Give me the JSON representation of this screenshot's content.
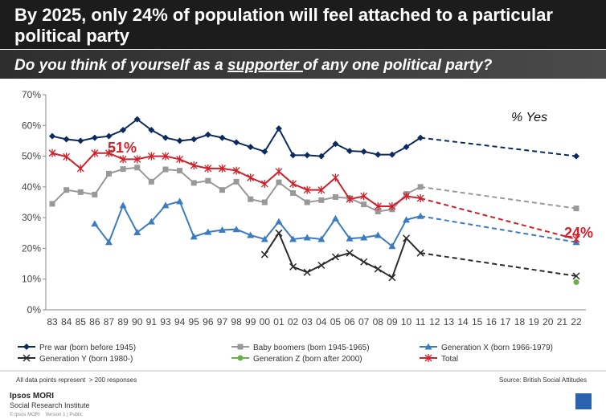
{
  "chart_data": {
    "type": "line",
    "title": [
      "By 2025, only 24% of population will feel attached to a particular",
      "political party"
    ],
    "subtitle": [
      "Do you think of yourself as a ",
      "supporter ",
      "of any one political party?"
    ],
    "categories": [
      "83",
      "84",
      "85",
      "86",
      "87",
      "89",
      "90",
      "91",
      "93",
      "94",
      "95",
      "96",
      "97",
      "98",
      "99",
      "00",
      "01",
      "02",
      "03",
      "04",
      "05",
      "06",
      "07",
      "08",
      "09",
      "10",
      "11",
      "12",
      "13",
      "14",
      "15",
      "16",
      "17",
      "18",
      "19",
      "20",
      "21",
      "22"
    ],
    "ylim": [
      0,
      70
    ],
    "yticks": [
      {
        "value": 0,
        "label": "0%"
      },
      {
        "value": 10,
        "label": "10%"
      },
      {
        "value": 20,
        "label": "20%"
      },
      {
        "value": 30,
        "label": "30%"
      },
      {
        "value": 40,
        "label": "40%"
      },
      {
        "value": 50,
        "label": "50%"
      },
      {
        "value": 60,
        "label": "60%"
      },
      {
        "value": 70,
        "label": "70%"
      }
    ],
    "series": [
      {
        "name": "Pre war (born before 1945)",
        "color": "#0d2a5e",
        "marker": "diamond",
        "values": [
          56.5,
          55.5,
          55,
          56,
          56.5,
          58.5,
          62,
          58.5,
          56,
          55,
          55.5,
          57,
          56,
          54.5,
          53,
          51.5,
          59,
          50.3,
          50.3,
          50,
          54,
          51.7,
          51.5,
          50.5,
          50.5,
          53,
          56,
          null,
          null,
          null,
          null,
          null,
          null,
          null,
          null,
          null,
          null,
          50
        ]
      },
      {
        "name": "Baby boomers (born 1945-1965)",
        "color": "#999999",
        "marker": "square",
        "values": [
          34.5,
          39,
          38.3,
          37.5,
          44.3,
          45.8,
          46.3,
          41.7,
          45.7,
          45.3,
          41.3,
          42,
          39,
          41.7,
          36,
          35,
          41.5,
          38,
          35,
          35.7,
          36.7,
          36.3,
          34.3,
          32,
          32.7,
          37.7,
          40,
          null,
          null,
          null,
          null,
          null,
          null,
          null,
          null,
          null,
          null,
          33
        ]
      },
      {
        "name": "Generation X (born 1966-1979)",
        "color": "#3b7bbf",
        "marker": "triangle",
        "values": [
          null,
          null,
          null,
          28,
          22,
          34,
          25.2,
          28.7,
          34,
          35.3,
          23.8,
          25.3,
          26,
          26.2,
          24.3,
          23,
          28.7,
          23,
          23.5,
          23,
          29.7,
          23.2,
          23.5,
          24.3,
          20.7,
          29.3,
          30.5,
          null,
          null,
          null,
          null,
          null,
          null,
          null,
          null,
          null,
          null,
          22
        ]
      },
      {
        "name": "Generation Y (born 1980-)",
        "color": "#2b2b2b",
        "marker": "x",
        "values": [
          null,
          null,
          null,
          null,
          null,
          null,
          null,
          null,
          null,
          null,
          null,
          null,
          null,
          null,
          null,
          18,
          25,
          14,
          12.2,
          14.5,
          17.2,
          18.5,
          15.6,
          13.3,
          10.5,
          23.3,
          18.5,
          null,
          null,
          null,
          null,
          null,
          null,
          null,
          null,
          null,
          null,
          11
        ]
      },
      {
        "name": "Generation Z (born after 2000)",
        "color": "#6ab04c",
        "marker": "circle",
        "values": [
          null,
          null,
          null,
          null,
          null,
          null,
          null,
          null,
          null,
          null,
          null,
          null,
          null,
          null,
          null,
          null,
          null,
          null,
          null,
          null,
          null,
          null,
          null,
          null,
          null,
          null,
          null,
          null,
          null,
          null,
          null,
          null,
          null,
          null,
          null,
          null,
          null,
          9
        ]
      },
      {
        "name": "Total",
        "color": "#d0202a",
        "marker": "asterisk",
        "values": [
          51,
          49.8,
          46,
          51,
          51,
          49,
          49,
          50,
          50,
          49,
          47,
          46,
          46,
          45.3,
          43,
          41,
          45,
          41,
          39,
          39,
          43,
          36,
          37,
          33.7,
          33.7,
          37,
          36.3,
          null,
          null,
          null,
          null,
          null,
          null,
          null,
          null,
          null,
          null,
          23
        ]
      }
    ],
    "annotations": [
      "51%",
      "24%",
      "% Yes"
    ],
    "footnote": "All data points represent  > 200 responses",
    "source": "Source: British Social Attitudes",
    "footer": [
      "Ipsos MORI",
      "Social Research Institute",
      "© Ipsos MORI    Version 1 | Public"
    ]
  }
}
